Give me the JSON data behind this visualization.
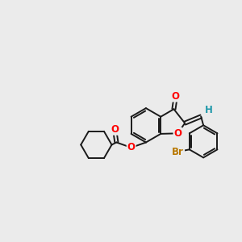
{
  "background_color": "#ebebeb",
  "bond_color": "#1a1a1a",
  "bond_width": 1.4,
  "atom_colors": {
    "O": "#ff0000",
    "Br": "#b87800",
    "H": "#2299aa",
    "C": "#1a1a1a"
  },
  "font_size_atom": 8.5,
  "xlim": [
    0,
    10
  ],
  "ylim": [
    0,
    10
  ]
}
